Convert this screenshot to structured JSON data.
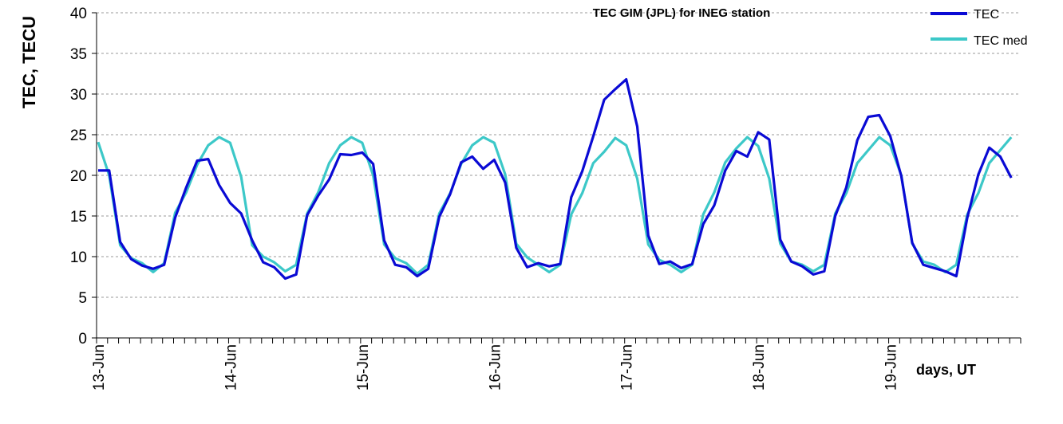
{
  "chart_data": {
    "type": "line",
    "title": "TEC GIM (JPL) for INEG station",
    "ylabel": "TEC, TECU",
    "xlabel": "days, UT",
    "ylim": [
      0,
      40
    ],
    "yticks": [
      0,
      5,
      10,
      15,
      20,
      25,
      30,
      35,
      40
    ],
    "x_tick_labels": [
      "13-Jun",
      "14-Jun",
      "15-Jun",
      "16-Jun",
      "17-Jun",
      "18-Jun",
      "19-Jun"
    ],
    "x_step_hours": 2,
    "grid": true,
    "legend_position": "top-right",
    "series": [
      {
        "name": "TEC",
        "color": "#0a0ad4",
        "values": [
          20.6,
          20.6,
          11.8,
          9.7,
          8.9,
          8.5,
          9.0,
          14.8,
          18.5,
          21.8,
          22.0,
          18.8,
          16.6,
          15.3,
          12.0,
          9.3,
          8.7,
          7.3,
          7.8,
          15.1,
          17.5,
          19.5,
          22.6,
          22.5,
          22.8,
          21.4,
          12.0,
          9.0,
          8.7,
          7.6,
          8.5,
          14.9,
          17.7,
          21.6,
          22.3,
          20.8,
          21.9,
          19.1,
          11.1,
          8.7,
          9.2,
          8.8,
          9.1,
          17.3,
          20.5,
          24.8,
          29.3,
          30.6,
          31.8,
          26.0,
          12.6,
          9.1,
          9.4,
          8.6,
          9.1,
          14.0,
          16.3,
          20.6,
          23.0,
          22.3,
          25.3,
          24.4,
          12.1,
          9.4,
          8.8,
          7.8,
          8.2,
          15.0,
          18.5,
          24.3,
          27.2,
          27.4,
          24.8,
          19.9,
          11.7,
          9.0,
          8.6,
          8.2,
          7.6,
          14.8,
          20.1,
          23.4,
          22.3,
          19.7
        ]
      },
      {
        "name": "TEC med",
        "color": "#3cc8c8",
        "values": [
          24.1,
          20.0,
          11.4,
          9.8,
          9.2,
          8.1,
          9.2,
          15.4,
          17.9,
          21.3,
          23.7,
          24.7,
          24.0,
          19.8,
          11.4,
          10.0,
          9.3,
          8.2,
          9.0,
          15.3,
          17.9,
          21.5,
          23.7,
          24.7,
          24.0,
          20.0,
          11.5,
          9.8,
          9.2,
          7.9,
          9.0,
          15.3,
          17.8,
          21.4,
          23.7,
          24.7,
          24.0,
          20.1,
          11.6,
          9.9,
          9.0,
          8.1,
          9.0,
          15.2,
          17.8,
          21.5,
          22.9,
          24.6,
          23.7,
          19.6,
          11.5,
          9.6,
          9.0,
          8.1,
          9.0,
          15.2,
          17.9,
          21.6,
          23.3,
          24.7,
          23.6,
          19.6,
          11.6,
          9.4,
          9.0,
          8.2,
          9.0,
          15.3,
          17.8,
          21.5,
          23.1,
          24.7,
          23.7,
          20.0,
          11.6,
          9.4,
          9.0,
          8.1,
          9.0,
          15.2,
          17.8,
          21.5,
          23.1,
          24.7
        ]
      }
    ]
  }
}
